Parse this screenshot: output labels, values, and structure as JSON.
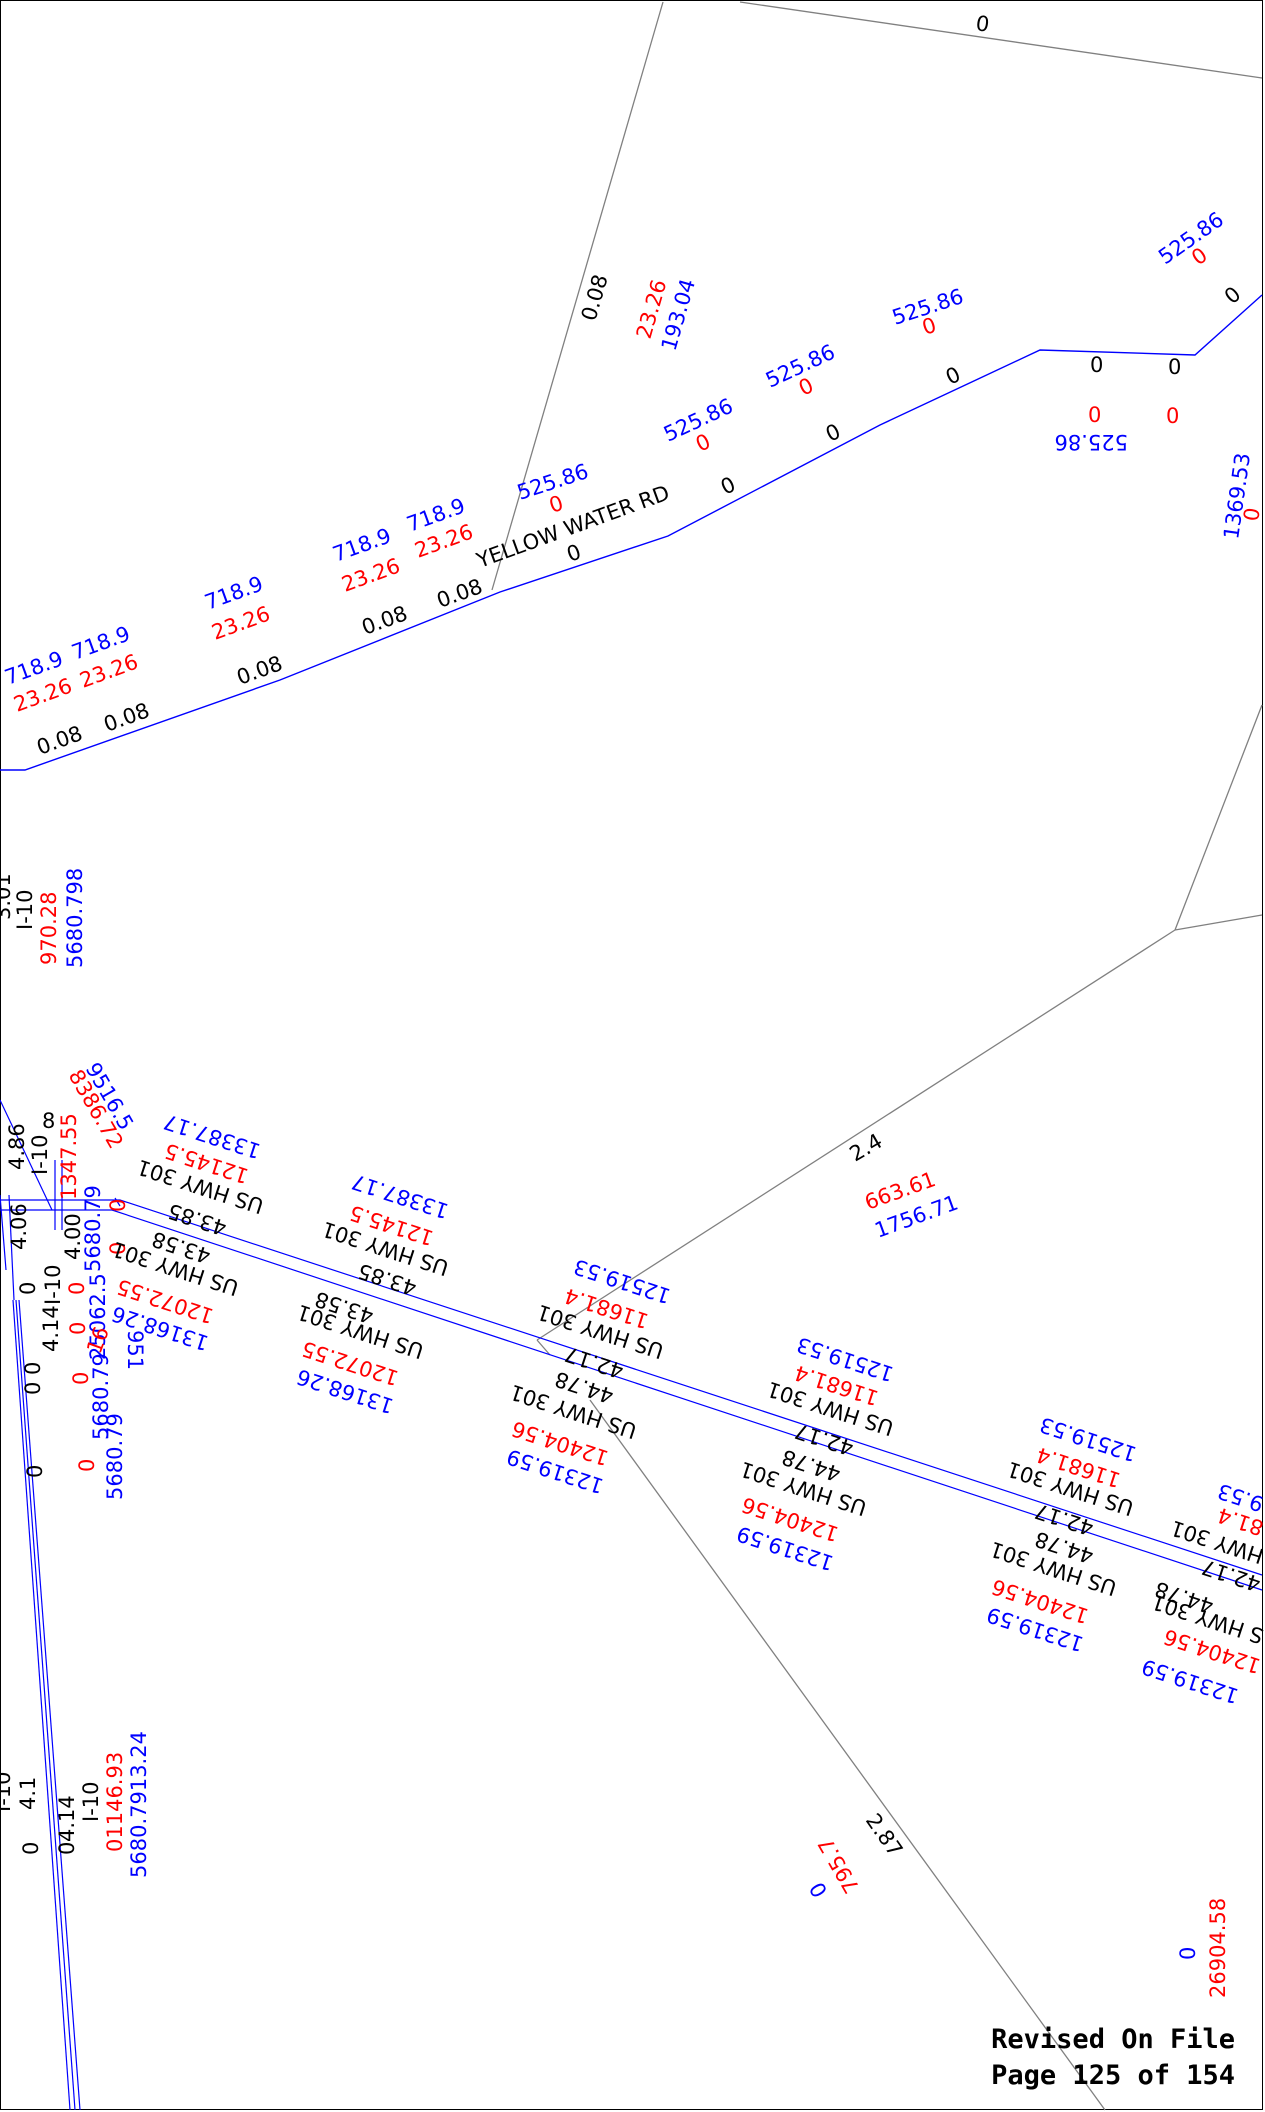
{
  "map": {
    "road_name": "YELLOW WATER RD",
    "colors": {
      "road_line": "#0000ff",
      "parcel_line": "#808080",
      "label_black": "#000000",
      "label_red": "#ff0000",
      "label_blue": "#0000ff"
    },
    "labels": {
      "yw_top_zero": "0",
      "yw_0_08_a": "0.08",
      "yw_0_08_b": "0.08",
      "yw_0_08_c": "0.08",
      "yw_0_08_d": "0.08",
      "yw_0_08_e": "0.08",
      "yw_0_08_f": "0.08",
      "yw_718_a": "718.9",
      "yw_2326_a": "23.26",
      "yw_718_b": "718.9",
      "yw_2326_b": "23.26",
      "yw_718_c": "718.9",
      "yw_2326_c": "23.26",
      "yw_718_d": "718.9",
      "yw_2326_d": "23.26",
      "yw_718_e": "718.9",
      "yw_2326_e": "23.26",
      "yw_2326_v": "23.26",
      "yw_19304": "193.04",
      "yw_52586_a": "525.86",
      "yw_0_a": "0",
      "yw_52586_b": "525.86",
      "yw_0_b": "0",
      "yw_52586_c": "525.86",
      "yw_0_c": "0",
      "yw_52586_d": "525.86",
      "yw_0_d": "0",
      "yw_52586_e": "525.86",
      "yw_0_e": "0",
      "yw_52586_f": "525.86",
      "yw_0_f1": "0",
      "yw_0_f2": "0",
      "yw_seg_0_a": "0",
      "yw_seg_0_b": "0",
      "yw_seg_0_c": "0",
      "yw_seg_0_d": "0",
      "yw_seg_0_e": "0",
      "yw_seg_0_f": "0",
      "yw_seg_0_g": "0",
      "yw_136953": "1369.53",
      "yw_0_right": "0",
      "i10_a1": "3.01",
      "i10_a2": "I-10",
      "i10_a3": "970.28",
      "i10_a4": "5680.798",
      "ln_95165": "9516.5",
      "ln_83862": "8386.72",
      "ln_486": "4.86",
      "ln_i10b": "I-10",
      "ln_8": "8",
      "ln_134755": "1347.55",
      "ln_406": "4.06",
      "ln_400": "4.00",
      "ln_0a": "0",
      "ln_568079a": "5680.79",
      "ln_i10c": "I-10",
      "ln_414a": "4.14",
      "ln_0b": "0",
      "ln_0c": "0",
      "ln_0d": "0",
      "ln_2506": "25062.5",
      "ln_0e": "0",
      "ln_16": "16",
      "ln_951": "951",
      "ln_00": "0 0",
      "ln_568079b": "5680.79",
      "ln_568079c": "5680.79",
      "ln_0f": "0",
      "ln_0g": "0",
      "ln_0h": "0",
      "us1_a": "13387.17",
      "us1_b": "12145.5",
      "us1_c": "US HWY 301",
      "us1_d": "43.85",
      "us2_a": "13387.17",
      "us2_b": "12145.5",
      "us2_c": "US HWY 301",
      "us2_d": "43.85",
      "us3_a": "43.58",
      "us3_b": "US HWY 301",
      "us3_c": "12072.55",
      "us3_d": "13168.26",
      "us4_a": "43.58",
      "us4_b": "US HWY 301",
      "us4_c": "12072.55",
      "us4_d": "13168.26",
      "us5_a": "12519.53",
      "us5_b": "11681.4",
      "us5_c": "US HWY 301",
      "us5_d": "42.17",
      "us6_a": "44.78",
      "us6_b": "US HWY 301",
      "us6_c": "12404.56",
      "us6_d": "12319.59",
      "us7_a": "12519.53",
      "us7_b": "11681.4",
      "us7_c": "US HWY 301",
      "us7_d": "42.17",
      "us8_a": "44.78",
      "us8_b": "US HWY 301",
      "us8_c": "12404.56",
      "us8_d": "12319.59",
      "us9_a": "12519.53",
      "us9_b": "11681.4",
      "us9_c": "US HWY 301",
      "us9_d": "42.17",
      "us10_a": "44.78",
      "us10_b": "US HWY 301",
      "us10_c": "12404.56",
      "us10_d": "12319.59",
      "us11_a": "9.53",
      "us11_b": "81.4",
      "us11_c": "HWY 301",
      "us11_d": "42.17",
      "us12_a": "44.78",
      "us12_b": "S HWY 301",
      "us12_c": "12404.56",
      "us12_d": "12319.59",
      "p_24": "2.4",
      "p_66361": "663.61",
      "p_175671": "1756.71",
      "p_287": "2.87",
      "p_7957": "795.7",
      "p_0x": "0",
      "p_0y": "0",
      "p_2690458": "26904.58",
      "i10_d1": "I-10",
      "i10_d2": "4.1",
      "i10_d3": "0",
      "i10_d4": "4.14",
      "i10_d5": "0",
      "i10_d6": "I-10",
      "i10_d7": "01146.93",
      "i10_d8": "5680.7913.24"
    }
  },
  "footer": {
    "line1": "Revised On File",
    "line2": "Page 125 of 154"
  }
}
